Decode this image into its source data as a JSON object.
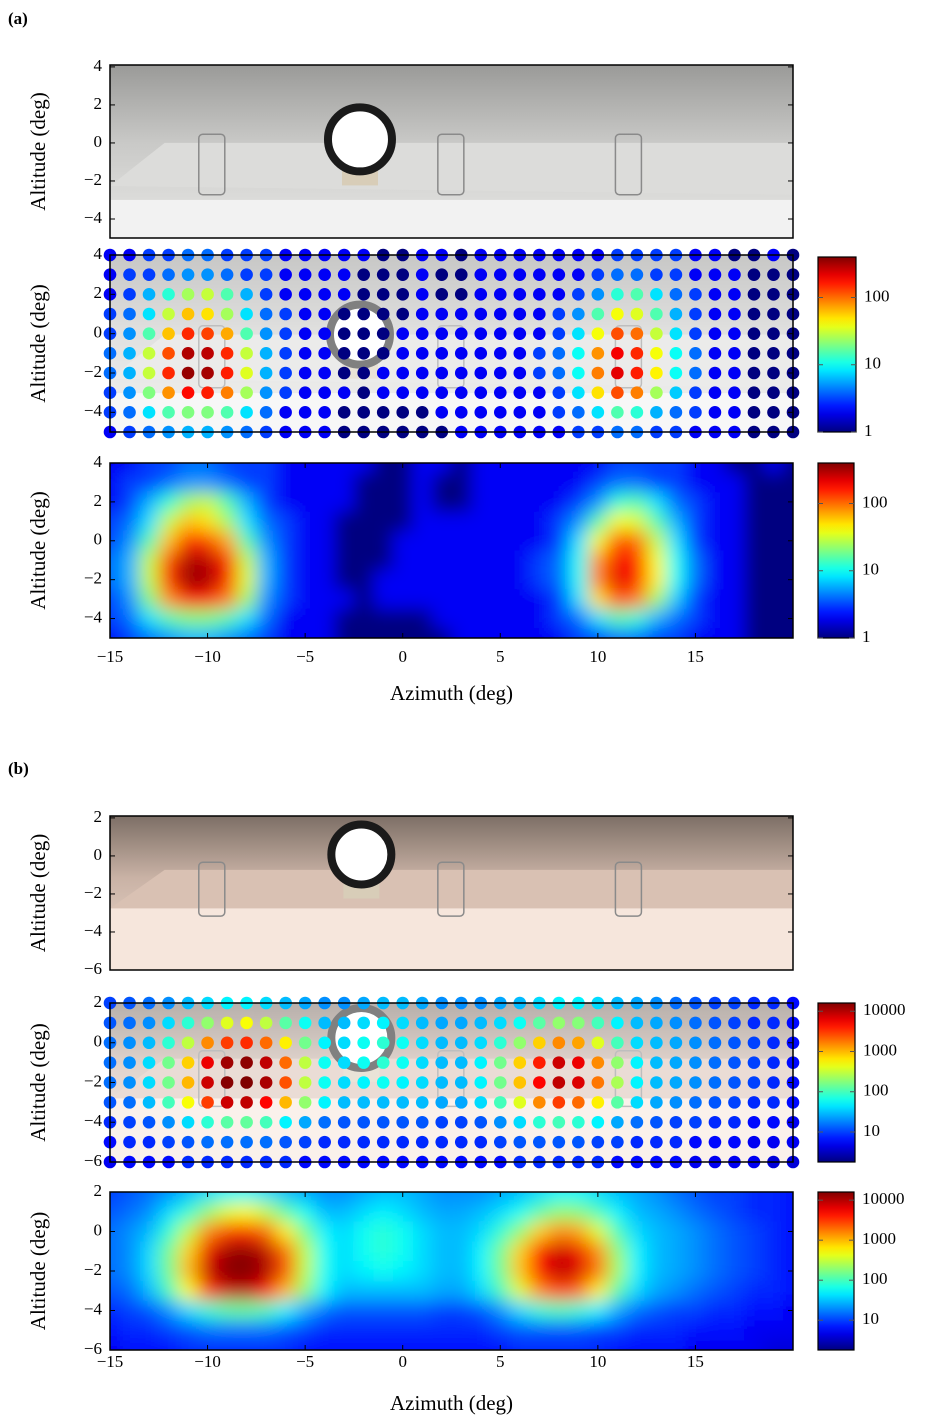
{
  "panel_labels": [
    "(a)",
    "(b)"
  ],
  "chart_data": [
    {
      "type": "image",
      "ylabel": "Altitude (deg)",
      "ylim": [
        -5,
        4.1
      ],
      "yticks": [
        4,
        2,
        0,
        {
          "value": -2,
          "label": "−2"
        },
        {
          "value": -4,
          "label": "−4"
        }
      ]
    },
    {
      "type": "grid-scatter",
      "ylabel": "Altitude (deg)",
      "xlim": [
        -15,
        20
      ],
      "ylim": [
        -5,
        4
      ],
      "yticks": [
        4,
        2,
        0,
        {
          "value": -2,
          "label": "−2"
        },
        {
          "value": -4,
          "label": "−4"
        }
      ],
      "x": [
        -15,
        -14,
        -13,
        -12,
        -11,
        -10,
        -9,
        -8,
        -7,
        -6,
        -5,
        -4,
        -3,
        -2,
        -1,
        0,
        1,
        2,
        3,
        4,
        5,
        6,
        7,
        8,
        9,
        10,
        11,
        12,
        13,
        14,
        15,
        16,
        17,
        18,
        19,
        20
      ],
      "y": [
        4,
        3,
        2,
        1,
        0,
        -1,
        -2,
        -3,
        -4,
        -5
      ],
      "values": [
        [
          2,
          2,
          3,
          3,
          4,
          4,
          3,
          3,
          3,
          2,
          2,
          2,
          2,
          2,
          1,
          1,
          2,
          2,
          1,
          2,
          2,
          2,
          2,
          2,
          2,
          2,
          3,
          3,
          3,
          3,
          2,
          2,
          1,
          1,
          2,
          1
        ],
        [
          2,
          3,
          3,
          4,
          5,
          5,
          4,
          3,
          3,
          2,
          2,
          2,
          2,
          1,
          1,
          1,
          2,
          1,
          1,
          2,
          2,
          2,
          2,
          2,
          2,
          3,
          4,
          4,
          3,
          3,
          2,
          2,
          2,
          1,
          1,
          1
        ],
        [
          2,
          3,
          6,
          12,
          25,
          30,
          15,
          6,
          3,
          2,
          2,
          2,
          2,
          1,
          1,
          1,
          2,
          1,
          1,
          2,
          2,
          2,
          2,
          2,
          3,
          5,
          12,
          15,
          8,
          4,
          3,
          2,
          2,
          1,
          1,
          1
        ],
        [
          3,
          4,
          8,
          30,
          60,
          50,
          25,
          8,
          4,
          3,
          2,
          2,
          1,
          1,
          1,
          1,
          2,
          2,
          2,
          2,
          2,
          2,
          2,
          3,
          5,
          15,
          40,
          35,
          15,
          6,
          3,
          2,
          2,
          1,
          1,
          1
        ],
        [
          3,
          5,
          15,
          60,
          150,
          130,
          70,
          15,
          5,
          3,
          2,
          2,
          1,
          1,
          1,
          2,
          2,
          2,
          2,
          2,
          2,
          2,
          2,
          3,
          8,
          40,
          120,
          100,
          30,
          8,
          3,
          2,
          2,
          1,
          1,
          1
        ],
        [
          4,
          6,
          30,
          120,
          300,
          280,
          150,
          30,
          6,
          3,
          2,
          2,
          1,
          1,
          1,
          2,
          2,
          2,
          2,
          2,
          2,
          2,
          3,
          4,
          10,
          80,
          200,
          150,
          40,
          10,
          4,
          2,
          2,
          1,
          1,
          1
        ],
        [
          4,
          6,
          30,
          150,
          350,
          320,
          160,
          35,
          6,
          3,
          2,
          2,
          1,
          1,
          2,
          2,
          2,
          2,
          2,
          2,
          2,
          2,
          3,
          4,
          10,
          90,
          220,
          160,
          45,
          10,
          4,
          2,
          2,
          1,
          1,
          1
        ],
        [
          3,
          5,
          20,
          80,
          180,
          160,
          90,
          25,
          5,
          3,
          2,
          2,
          2,
          1,
          2,
          2,
          2,
          2,
          2,
          2,
          2,
          2,
          2,
          3,
          8,
          50,
          120,
          90,
          25,
          7,
          3,
          2,
          2,
          1,
          1,
          1
        ],
        [
          3,
          4,
          8,
          15,
          20,
          20,
          15,
          8,
          4,
          2,
          2,
          2,
          1,
          1,
          1,
          1,
          1,
          2,
          2,
          2,
          2,
          2,
          2,
          3,
          4,
          8,
          15,
          12,
          6,
          4,
          3,
          2,
          2,
          1,
          1,
          1
        ],
        [
          2,
          3,
          4,
          5,
          6,
          6,
          5,
          4,
          3,
          2,
          2,
          2,
          1,
          1,
          1,
          1,
          1,
          1,
          2,
          2,
          2,
          2,
          2,
          2,
          3,
          3,
          4,
          4,
          3,
          3,
          2,
          2,
          2,
          1,
          1,
          1
        ]
      ],
      "clim": [
        1,
        400
      ],
      "cticks": [
        1,
        10,
        100
      ],
      "log_color": true,
      "colormap": "jet"
    },
    {
      "type": "heatmap",
      "ylabel": "Altitude (deg)",
      "xlim": [
        -15,
        20
      ],
      "ylim": [
        -5,
        4
      ],
      "yticks": [
        4,
        2,
        0,
        {
          "value": -2,
          "label": "−2"
        },
        {
          "value": -4,
          "label": "−4"
        }
      ],
      "xticks": [
        {
          "value": -15,
          "label": "−15"
        },
        {
          "value": -10,
          "label": "−10"
        },
        {
          "value": -5,
          "label": "−5"
        },
        0,
        5,
        10,
        15
      ],
      "xlabel": "Azimuth (deg)",
      "clim": [
        1,
        400
      ],
      "cticks": [
        1,
        10,
        100
      ],
      "log_color": true,
      "colormap": "jet"
    },
    {
      "type": "image",
      "ylabel": "Altitude (deg)",
      "ylim": [
        -6,
        2.1
      ],
      "yticks": [
        2,
        0,
        {
          "value": -2,
          "label": "−2"
        },
        {
          "value": -4,
          "label": "−4"
        },
        {
          "value": -6,
          "label": "−6"
        }
      ]
    },
    {
      "type": "grid-scatter",
      "ylabel": "Altitude (deg)",
      "xlim": [
        -15,
        20
      ],
      "ylim": [
        -6,
        2
      ],
      "yticks": [
        2,
        0,
        {
          "value": -2,
          "label": "−2"
        },
        {
          "value": -4,
          "label": "−4"
        },
        {
          "value": -6,
          "label": "−6"
        }
      ],
      "x": [
        -15,
        -14,
        -13,
        -12,
        -11,
        -10,
        -9,
        -8,
        -7,
        -6,
        -5,
        -4,
        -3,
        -2,
        -1,
        0,
        1,
        2,
        3,
        4,
        5,
        6,
        7,
        8,
        9,
        10,
        11,
        12,
        13,
        14,
        15,
        16,
        17,
        18,
        19,
        20
      ],
      "y": [
        2,
        1,
        0,
        -1,
        -2,
        -3,
        -4,
        -5,
        -6
      ],
      "values": [
        [
          10,
          12,
          15,
          20,
          30,
          40,
          50,
          50,
          40,
          30,
          25,
          20,
          20,
          25,
          30,
          30,
          25,
          20,
          20,
          20,
          25,
          30,
          40,
          50,
          50,
          40,
          30,
          25,
          20,
          15,
          12,
          10,
          10,
          8,
          8,
          6
        ],
        [
          12,
          15,
          20,
          40,
          80,
          200,
          400,
          500,
          300,
          120,
          60,
          30,
          30,
          40,
          50,
          40,
          30,
          25,
          25,
          30,
          40,
          60,
          120,
          200,
          180,
          100,
          50,
          30,
          25,
          20,
          15,
          12,
          10,
          8,
          8,
          6
        ],
        [
          15,
          20,
          30,
          80,
          300,
          1500,
          3000,
          3500,
          2000,
          600,
          150,
          50,
          40,
          60,
          80,
          60,
          40,
          30,
          30,
          40,
          80,
          200,
          800,
          1500,
          1200,
          400,
          100,
          40,
          30,
          25,
          20,
          15,
          12,
          10,
          8,
          6
        ],
        [
          15,
          20,
          40,
          150,
          800,
          6000,
          12000,
          14000,
          9000,
          2000,
          300,
          60,
          40,
          60,
          80,
          60,
          40,
          30,
          30,
          50,
          150,
          800,
          4000,
          8000,
          6000,
          1500,
          200,
          50,
          30,
          25,
          20,
          15,
          12,
          10,
          8,
          6
        ],
        [
          15,
          20,
          40,
          150,
          1000,
          8000,
          15000,
          16000,
          11000,
          2500,
          300,
          60,
          40,
          50,
          60,
          50,
          40,
          30,
          30,
          50,
          150,
          900,
          5000,
          9000,
          7000,
          1800,
          250,
          50,
          30,
          25,
          20,
          15,
          12,
          10,
          8,
          6
        ],
        [
          12,
          15,
          30,
          100,
          500,
          3000,
          8000,
          9000,
          5000,
          1000,
          200,
          50,
          30,
          30,
          30,
          30,
          30,
          25,
          25,
          40,
          100,
          400,
          1500,
          3000,
          2000,
          600,
          120,
          40,
          25,
          20,
          15,
          12,
          10,
          8,
          8,
          6
        ],
        [
          8,
          10,
          12,
          20,
          40,
          80,
          120,
          130,
          100,
          50,
          25,
          15,
          12,
          12,
          12,
          12,
          12,
          10,
          10,
          12,
          20,
          40,
          80,
          100,
          80,
          50,
          25,
          15,
          12,
          10,
          10,
          8,
          8,
          6,
          6,
          5
        ],
        [
          6,
          8,
          8,
          10,
          12,
          15,
          15,
          15,
          15,
          12,
          10,
          8,
          8,
          8,
          8,
          8,
          8,
          8,
          8,
          8,
          10,
          12,
          12,
          12,
          12,
          10,
          10,
          8,
          8,
          8,
          6,
          6,
          6,
          5,
          5,
          5
        ],
        [
          5,
          6,
          6,
          6,
          8,
          8,
          8,
          8,
          8,
          8,
          6,
          6,
          6,
          6,
          6,
          6,
          6,
          6,
          6,
          6,
          6,
          8,
          8,
          8,
          8,
          8,
          6,
          6,
          6,
          6,
          5,
          5,
          5,
          5,
          4,
          4
        ]
      ],
      "clim": [
        1.8,
        16000
      ],
      "cticks": [
        10,
        100,
        1000,
        10000
      ],
      "log_color": true,
      "colormap": "jet"
    },
    {
      "type": "heatmap",
      "ylabel": "Altitude (deg)",
      "xlim": [
        -15,
        20
      ],
      "ylim": [
        -6,
        2
      ],
      "yticks": [
        2,
        0,
        {
          "value": -2,
          "label": "−2"
        },
        {
          "value": -4,
          "label": "−4"
        },
        {
          "value": -6,
          "label": "−6"
        }
      ],
      "xticks": [
        {
          "value": -15,
          "label": "−15"
        },
        {
          "value": -10,
          "label": "−10"
        },
        {
          "value": -5,
          "label": "−5"
        },
        0,
        5,
        10,
        15
      ],
      "xlabel": "Azimuth (deg)",
      "clim": [
        1.8,
        16000
      ],
      "cticks": [
        10,
        100,
        1000,
        10000
      ],
      "log_color": true,
      "colormap": "jet"
    }
  ]
}
